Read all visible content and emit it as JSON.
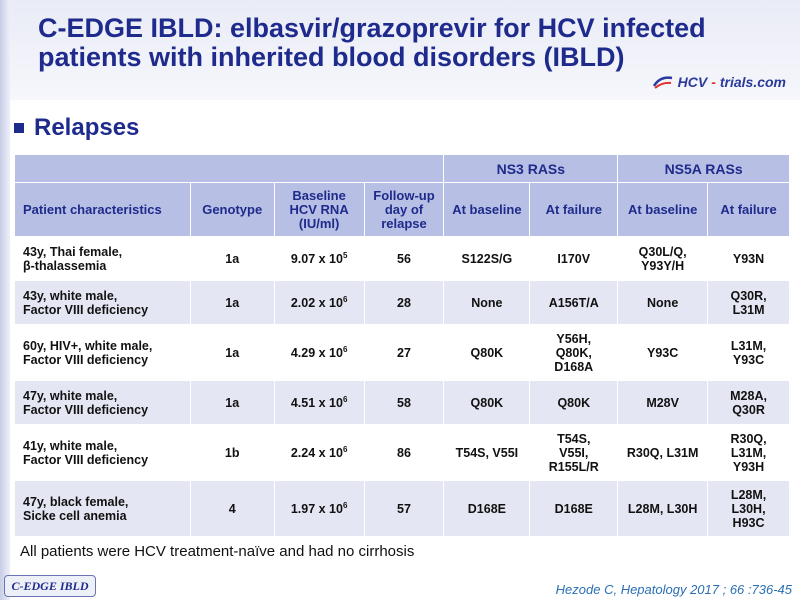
{
  "title": "C-EDGE IBLD: elbasvir/grazoprevir for HCV infected patients with inherited blood disorders (IBLD)",
  "logo": {
    "prefix": "HCV",
    "dash": "-",
    "suffix": "trials.com"
  },
  "section": {
    "label": "Relapses"
  },
  "table": {
    "group_headers": {
      "ns3": "NS3 RASs",
      "ns5a": "NS5A RASs"
    },
    "column_headers": {
      "patient": "Patient characteristics",
      "genotype": "Genotype",
      "baseline_rna_1": "Baseline",
      "baseline_rna_2": "HCV RNA",
      "baseline_rna_3": "(IU/ml)",
      "followup_1": "Follow-up",
      "followup_2": "day of",
      "followup_3": "relapse",
      "ns3_baseline": "At baseline",
      "ns3_failure": "At failure",
      "ns5a_baseline": "At baseline",
      "ns5a_failure": "At failure"
    },
    "rows": [
      {
        "patient_1": "43y, Thai female,",
        "patient_2": "β-thalassemia",
        "genotype": "1a",
        "rna_mantissa": "9.07 x 10",
        "rna_exp": "5",
        "followup": "56",
        "ns3_baseline": [
          "S122S/G"
        ],
        "ns3_failure": [
          "I170V"
        ],
        "ns5a_baseline": [
          "Q30L/Q,",
          "Y93Y/H"
        ],
        "ns5a_failure": [
          "Y93N"
        ]
      },
      {
        "patient_1": "43y, white male,",
        "patient_2": "Factor VIII deficiency",
        "genotype": "1a",
        "rna_mantissa": "2.02 x 10",
        "rna_exp": "6",
        "followup": "28",
        "ns3_baseline": [
          "None"
        ],
        "ns3_failure": [
          "A156T/A"
        ],
        "ns5a_baseline": [
          "None"
        ],
        "ns5a_failure": [
          "Q30R,",
          "L31M"
        ]
      },
      {
        "patient_1": "60y, HIV+, white male,",
        "patient_2": "Factor VIII deficiency",
        "genotype": "1a",
        "rna_mantissa": "4.29 x 10",
        "rna_exp": "6",
        "followup": "27",
        "ns3_baseline": [
          "Q80K"
        ],
        "ns3_failure": [
          "Y56H,",
          "Q80K,",
          "D168A"
        ],
        "ns5a_baseline": [
          "Y93C"
        ],
        "ns5a_failure": [
          "L31M,",
          "Y93C"
        ]
      },
      {
        "patient_1": "47y, white male,",
        "patient_2": "Factor VIII deficiency",
        "genotype": "1a",
        "rna_mantissa": "4.51 x 10",
        "rna_exp": "6",
        "followup": "58",
        "ns3_baseline": [
          "Q80K"
        ],
        "ns3_failure": [
          "Q80K"
        ],
        "ns5a_baseline": [
          "M28V"
        ],
        "ns5a_failure": [
          "M28A,",
          "Q30R"
        ]
      },
      {
        "patient_1": "41y, white male,",
        "patient_2": "Factor VIII deficiency",
        "genotype": "1b",
        "rna_mantissa": "2.24 x 10",
        "rna_exp": "6",
        "followup": "86",
        "ns3_baseline": [
          "T54S, V55I"
        ],
        "ns3_failure": [
          "T54S,",
          "V55I,",
          "R155L/R"
        ],
        "ns5a_baseline": [
          "R30Q, L31M"
        ],
        "ns5a_failure": [
          "R30Q,",
          "L31M,",
          "Y93H"
        ]
      },
      {
        "patient_1": "47y, black female,",
        "patient_2": "Sicke cell anemia",
        "genotype": "4",
        "rna_mantissa": "1.97 x 10",
        "rna_exp": "6",
        "followup": "57",
        "ns3_baseline": [
          "D168E"
        ],
        "ns3_failure": [
          "D168E"
        ],
        "ns5a_baseline": [
          "L28M, L30H"
        ],
        "ns5a_failure": [
          "L28M,",
          "L30H,",
          "H93C"
        ]
      }
    ]
  },
  "note": "All patients were HCV treatment-naïve and had no cirrhosis",
  "badge": "C-EDGE IBLD",
  "citation": "Hezode C, Hepatology 2017 ; 66 :736-45"
}
